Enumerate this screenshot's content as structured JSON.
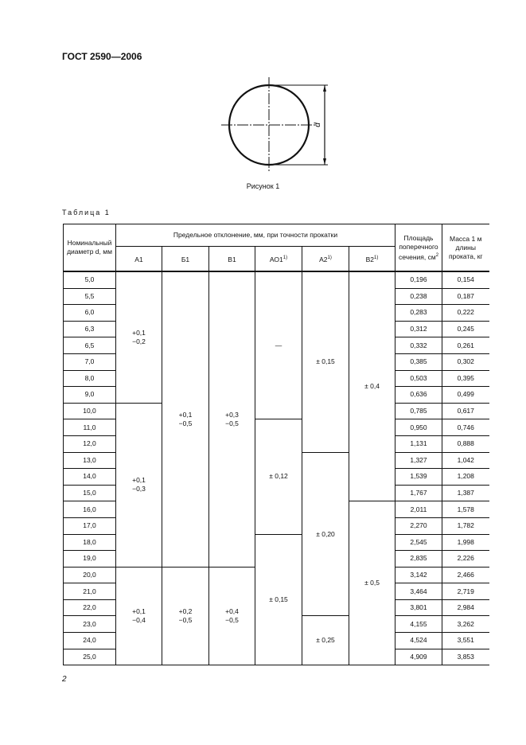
{
  "header": {
    "doc_id": "ГОСТ 2590—2006"
  },
  "figure": {
    "dimension_label": "d",
    "caption": "Рисунок 1"
  },
  "table": {
    "title": "Таблица 1",
    "col_diameter": "Номинальный диаметр d, мм",
    "col_deviation": "Предельное отклонение, мм, при точности прокатки",
    "accuracy": [
      {
        "label": "А1",
        "sup": ""
      },
      {
        "label": "Б1",
        "sup": ""
      },
      {
        "label": "В1",
        "sup": ""
      },
      {
        "label": "АО1",
        "sup": "1)"
      },
      {
        "label": "А2",
        "sup": "1)"
      },
      {
        "label": "В2",
        "sup": "1)"
      }
    ],
    "col_area": "Площадь поперечного сечения, см",
    "col_area_sup": "2",
    "col_mass": "Масса 1 м длины проката, кг",
    "diameters": [
      "5,0",
      "5,5",
      "6,0",
      "6,3",
      "6,5",
      "7,0",
      "8,0",
      "9,0",
      "10,0",
      "11,0",
      "12,0",
      "13,0",
      "14,0",
      "15,0",
      "16,0",
      "17,0",
      "18,0",
      "19,0",
      "20,0",
      "21,0",
      "22,0",
      "23,0",
      "24,0",
      "25,0"
    ],
    "areas": [
      "0,196",
      "0,238",
      "0,283",
      "0,312",
      "0,332",
      "0,385",
      "0,503",
      "0,636",
      "0,785",
      "0,950",
      "1,131",
      "1,327",
      "1,539",
      "1,767",
      "2,011",
      "2,270",
      "2,545",
      "2,835",
      "3,142",
      "3,464",
      "3,801",
      "4,155",
      "4,524",
      "4,909"
    ],
    "masses": [
      "0,154",
      "0,187",
      "0,222",
      "0,245",
      "0,261",
      "0,302",
      "0,395",
      "0,499",
      "0,617",
      "0,746",
      "0,888",
      "1,042",
      "1,208",
      "1,387",
      "1,578",
      "1,782",
      "1,998",
      "2,226",
      "2,466",
      "2,719",
      "2,984",
      "3,262",
      "3,551",
      "3,853"
    ],
    "deviations": [
      [
        {
          "text": "+0,1\n−0,2",
          "rows": 8
        },
        {
          "text": "+0,1\n−0,3",
          "rows": 10
        },
        {
          "text": "+0,1\n−0,4",
          "rows": 6
        }
      ],
      [
        {
          "text": "+0,1\n−0,5",
          "rows": 18
        },
        {
          "text": "+0,2\n−0,5",
          "rows": 6
        }
      ],
      [
        {
          "text": "+0,3\n−0,5",
          "rows": 18
        },
        {
          "text": "+0,4\n−0,5",
          "rows": 6
        }
      ],
      [
        {
          "text": "—",
          "rows": 9
        },
        {
          "text": "± 0,12",
          "rows": 7
        },
        {
          "text": "± 0,15",
          "rows": 8
        }
      ],
      [
        {
          "text": "± 0,15",
          "rows": 11
        },
        {
          "text": "± 0,20",
          "rows": 10
        },
        {
          "text": "± 0,25",
          "rows": 3
        }
      ],
      [
        {
          "text": "± 0,4",
          "rows": 14
        },
        {
          "text": "± 0,5",
          "rows": 10
        }
      ]
    ]
  },
  "footer": {
    "page_number": "2"
  }
}
